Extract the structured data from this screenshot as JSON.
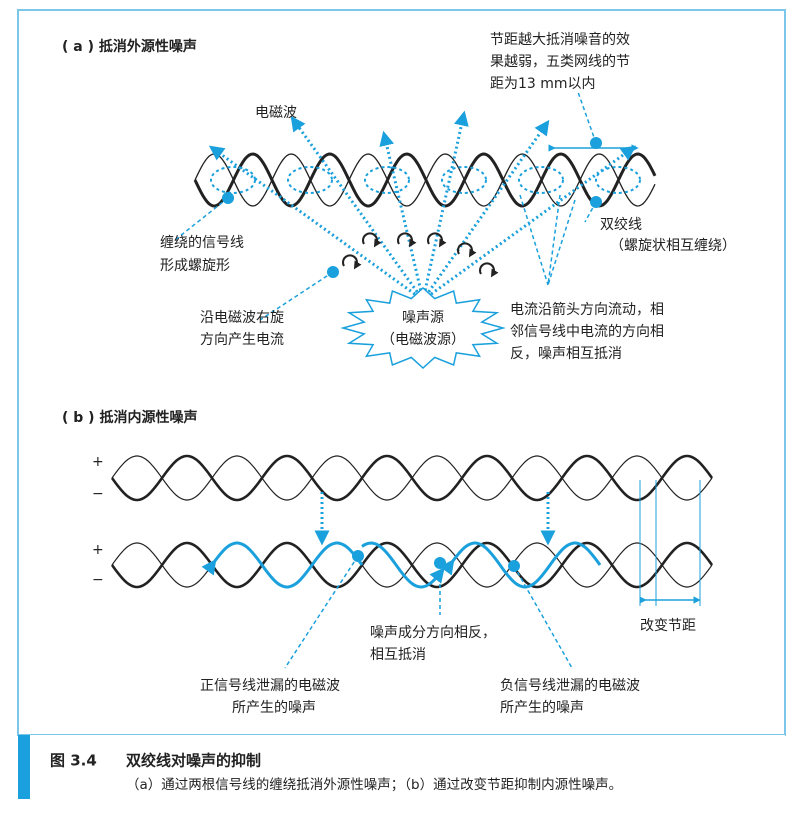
{
  "part_a": {
    "title": "( a ) 抵消外源性噪声",
    "pitch_note": [
      "节距越大抵消噪音的效",
      "果越弱，五类网线的节",
      "距为13 mm以内"
    ],
    "em_wave": "电磁波",
    "helix_note": [
      "缠绕的信号线",
      "形成螺旋形"
    ],
    "twisted_pair": [
      "双绞线",
      "（螺旋状相互缠绕）"
    ],
    "right_spin": [
      "沿电磁波右旋",
      "方向产生电流"
    ],
    "noise_source": [
      "噪声源",
      "（电磁波源）"
    ],
    "cancel_note": [
      "电流沿箭头方向流动，相",
      "邻信号线中电流的方向相",
      "反，噪声相互抵消"
    ]
  },
  "part_b": {
    "title": "( b ) 抵消内源性噪声",
    "signs": [
      "+",
      "−",
      "+",
      "−"
    ],
    "pitch_change": "改变节距",
    "opposite_note": [
      "噪声成分方向相反，",
      "相互抵消"
    ],
    "positive_note": [
      "正信号线泄漏的电磁波",
      "所产生的噪声"
    ],
    "negative_note": [
      "负信号线泄漏的电磁波",
      "所产生的噪声"
    ]
  },
  "caption": {
    "figure": "图 3.4",
    "title": "双绞线对噪声的抑制",
    "text": "（a）通过两根信号线的缠绕抵消外源性噪声；（b）通过改变节距抑制内源性噪声。"
  }
}
